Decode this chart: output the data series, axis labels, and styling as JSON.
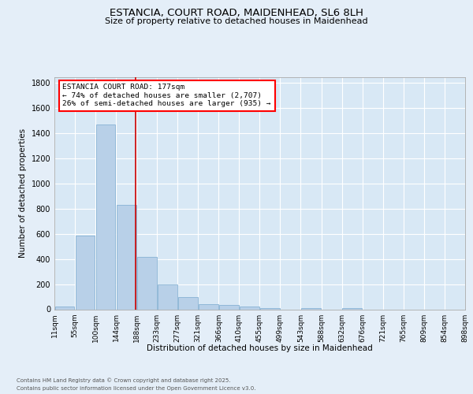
{
  "title_line1": "ESTANCIA, COURT ROAD, MAIDENHEAD, SL6 8LH",
  "title_line2": "Size of property relative to detached houses in Maidenhead",
  "xlabel": "Distribution of detached houses by size in Maidenhead",
  "ylabel": "Number of detached properties",
  "bar_values": [
    20,
    585,
    1470,
    830,
    415,
    200,
    100,
    38,
    35,
    20,
    10,
    0,
    12,
    0,
    8,
    0,
    0,
    0,
    0,
    0
  ],
  "bin_labels": [
    "11sqm",
    "55sqm",
    "100sqm",
    "144sqm",
    "188sqm",
    "233sqm",
    "277sqm",
    "321sqm",
    "366sqm",
    "410sqm",
    "455sqm",
    "499sqm",
    "543sqm",
    "588sqm",
    "632sqm",
    "676sqm",
    "721sqm",
    "765sqm",
    "809sqm",
    "854sqm",
    "898sqm"
  ],
  "bar_color": "#b8d0e8",
  "bar_edgecolor": "#7aaacf",
  "vline_color": "#cc0000",
  "vline_x": 3.45,
  "annotation_text": "ESTANCIA COURT ROAD: 177sqm\n← 74% of detached houses are smaller (2,707)\n26% of semi-detached houses are larger (935) →",
  "ylim": [
    0,
    1850
  ],
  "yticks": [
    0,
    200,
    400,
    600,
    800,
    1000,
    1200,
    1400,
    1600,
    1800
  ],
  "bg_color": "#e4eef8",
  "plot_bg_color": "#d8e8f5",
  "grid_color": "#ffffff",
  "footer_line1": "Contains HM Land Registry data © Crown copyright and database right 2025.",
  "footer_line2": "Contains public sector information licensed under the Open Government Licence v3.0."
}
